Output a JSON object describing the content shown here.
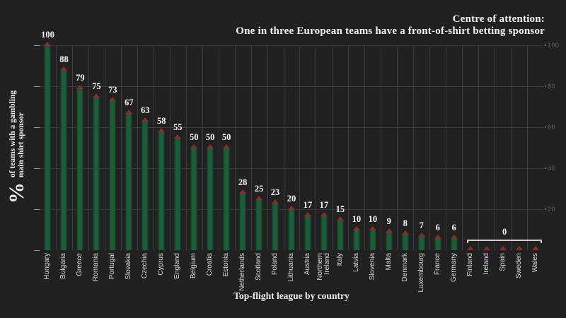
{
  "header": {
    "title": "Centre of attention:",
    "subtitle": "One in three European teams have a front-of-shirt betting sponsor"
  },
  "chart_data": {
    "type": "bar",
    "title_line1": "Centre of attention:",
    "title_line2": "One in three European teams have a front-of-shirt betting sponsor",
    "xlabel": "Top-flight league by country",
    "ylabel_symbol": "%",
    "ylabel_line1": "of teams with a gambling",
    "ylabel_line2": "main shirt sponsor",
    "categories": [
      "Hungary",
      "Bulgaria",
      "Greece",
      "Romania",
      "Portugal",
      "Slovakia",
      "Czechia",
      "Cyprus",
      "England",
      "Belgium",
      "Croatia",
      "Estonia",
      "Netherlands",
      "Scotland",
      "Poland",
      "Lithuania",
      "Austria",
      "Northern Ireland",
      "Italy",
      "Latvia",
      "Slovenia",
      "Malta",
      "Denmark",
      "Luxembourg",
      "France",
      "Germany",
      "Finland",
      "Ireland",
      "Spain",
      "Sweden",
      "Wales"
    ],
    "values": [
      100,
      88,
      79,
      75,
      73,
      67,
      63,
      58,
      55,
      50,
      50,
      50,
      28,
      25,
      23,
      20,
      17,
      17,
      15,
      10,
      10,
      9,
      8,
      7,
      6,
      6,
      0,
      0,
      0,
      0,
      0
    ],
    "ylim": [
      0,
      100
    ],
    "yticks": [
      20,
      40,
      60,
      80,
      100
    ],
    "grid": "on",
    "legend": "none",
    "zero_group": {
      "label": "0",
      "countries": [
        "Finland",
        "Ireland",
        "Spain",
        "Sweden",
        "Wales"
      ]
    },
    "colors": {
      "background": "#212121",
      "bar": "#1e5d3c",
      "marker": "#8b2a28",
      "grid_vertical": "#3c3c3c",
      "grid_horizontal": "#383838",
      "value_label": "#f7f7f7",
      "country_label": "#d9d9d9",
      "axis_number": "#646464",
      "title": "#f2f2f2"
    }
  }
}
